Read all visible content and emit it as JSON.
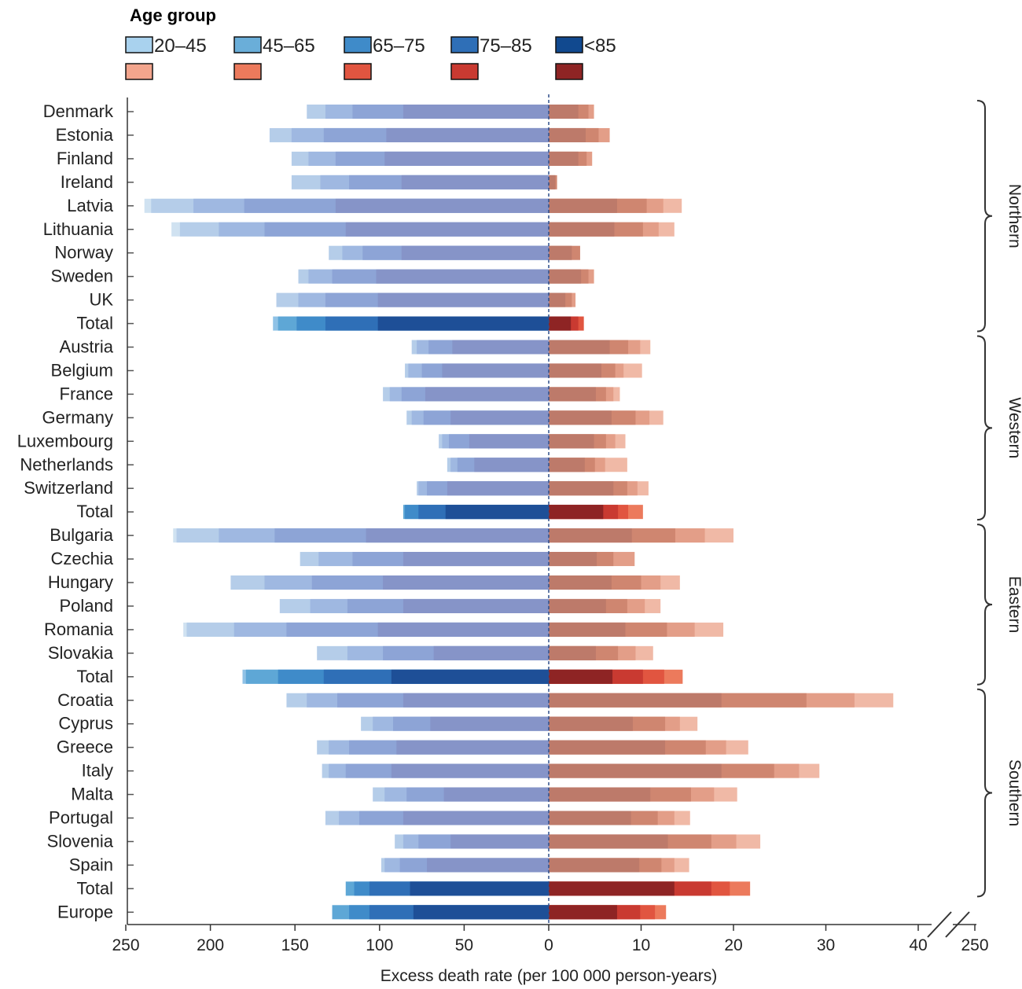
{
  "chart_data": {
    "type": "bar",
    "orientation": "horizontal",
    "legend": {
      "title": "Age group",
      "entries": [
        "20–45",
        "45–65",
        "65–75",
        "75–85",
        "<85"
      ],
      "placement": "top-left"
    },
    "colors": {
      "blue_muted": [
        "#d0e2f1",
        "#b5cde9",
        "#9fb8e1",
        "#8da4d6",
        "#8694c8"
      ],
      "blue_total": [
        "#8fc2e6",
        "#5ea7d6",
        "#3f8bc9",
        "#2f6fb7",
        "#1e4f97"
      ],
      "red_muted": [
        "#f6d4c9",
        "#f0b9a6",
        "#e39e88",
        "#cf8670",
        "#bd7a6a"
      ],
      "red_total": [
        "#f3a58d",
        "#ec7a5c",
        "#e15540",
        "#c93a31",
        "#8e2424"
      ],
      "legend_blue": [
        "#a9d2ee",
        "#6aaed9",
        "#3f8bc9",
        "#2f6fb7",
        "#11498f"
      ],
      "legend_red": [
        "#f3a58d",
        "#ec7a5c",
        "#e15540",
        "#c93a31",
        "#8e2424"
      ]
    },
    "xlabel": "Excess death rate (per 100 000 person-years)",
    "left_ticks": [
      250,
      200,
      150,
      100,
      50,
      0
    ],
    "right_ticks": [
      10,
      20,
      30,
      40,
      250
    ],
    "left_range": [
      0,
      250
    ],
    "right_range": [
      0,
      40
    ],
    "axis_break_right": true,
    "regions": [
      {
        "name": "Northern",
        "from": "Denmark",
        "to": "Total"
      },
      {
        "name": "Western",
        "from": "Austria",
        "to": "Total"
      },
      {
        "name": "Eastern",
        "from": "Bulgaria",
        "to": "Total"
      },
      {
        "name": "Southern",
        "from": "Croatia",
        "to": "Total"
      }
    ],
    "rows": [
      {
        "label": "Denmark",
        "total": false,
        "left": [
          86,
          116,
          132,
          143
        ],
        "right": [
          3.2,
          4.3,
          4.9
        ]
      },
      {
        "label": "Estonia",
        "total": false,
        "left": [
          96,
          133,
          152,
          165
        ],
        "right": [
          4.0,
          5.4,
          6.6
        ]
      },
      {
        "label": "Finland",
        "total": false,
        "left": [
          97,
          126,
          142,
          152
        ],
        "right": [
          3.2,
          4.1,
          4.7
        ]
      },
      {
        "label": "Ireland",
        "total": false,
        "left": [
          87,
          118,
          135,
          152
        ],
        "right": [
          0.7,
          0.9
        ]
      },
      {
        "label": "Latvia",
        "total": false,
        "left": [
          126,
          180,
          210,
          235,
          239
        ],
        "right": [
          7.4,
          10.6,
          12.4,
          14.4
        ]
      },
      {
        "label": "Lithuania",
        "total": false,
        "left": [
          120,
          168,
          195,
          218,
          223
        ],
        "right": [
          7.1,
          10.2,
          11.9,
          13.6
        ]
      },
      {
        "label": "Norway",
        "total": false,
        "left": [
          87,
          110,
          122,
          130
        ],
        "right": [
          2.5,
          3.4
        ]
      },
      {
        "label": "Sweden",
        "total": false,
        "left": [
          102,
          128,
          142,
          148
        ],
        "right": [
          3.5,
          4.3,
          4.9
        ]
      },
      {
        "label": "UK",
        "total": false,
        "left": [
          101,
          132,
          148,
          161
        ],
        "right": [
          1.8,
          2.5,
          2.9
        ]
      },
      {
        "label": "Total",
        "total": true,
        "left": [
          101,
          132,
          149,
          160,
          163
        ],
        "right": [
          2.4,
          3.2,
          3.8
        ]
      },
      {
        "label": "Austria",
        "total": false,
        "left": [
          57,
          71,
          78,
          81
        ],
        "right": [
          6.6,
          8.6,
          9.9,
          11.0
        ]
      },
      {
        "label": "Belgium",
        "total": false,
        "left": [
          63,
          75,
          83,
          85
        ],
        "right": [
          5.7,
          7.2,
          8.1,
          10.1
        ]
      },
      {
        "label": "France",
        "total": false,
        "left": [
          73,
          87,
          94,
          98
        ],
        "right": [
          5.1,
          6.2,
          7.0,
          7.7
        ]
      },
      {
        "label": "Germany",
        "total": false,
        "left": [
          58,
          74,
          81,
          84
        ],
        "right": [
          6.8,
          9.4,
          10.9,
          12.4
        ]
      },
      {
        "label": "Luxembourg",
        "total": false,
        "left": [
          47,
          59,
          63,
          65
        ],
        "right": [
          4.9,
          6.2,
          7.2,
          8.3
        ]
      },
      {
        "label": "Netherlands",
        "total": false,
        "left": [
          44,
          54,
          58,
          60
        ],
        "right": [
          3.9,
          5.0,
          6.1,
          8.5
        ]
      },
      {
        "label": "Switzerland",
        "total": false,
        "left": [
          60,
          72,
          77,
          78
        ],
        "right": [
          7.0,
          8.5,
          9.6,
          10.8
        ]
      },
      {
        "label": "Total",
        "total": true,
        "left": [
          61,
          77,
          85,
          86
        ],
        "right": [
          5.9,
          7.5,
          8.6,
          10.2
        ]
      },
      {
        "label": "Bulgaria",
        "total": false,
        "left": [
          108,
          162,
          195,
          220,
          222
        ],
        "right": [
          9.0,
          13.7,
          16.9,
          20.0
        ]
      },
      {
        "label": "Czechia",
        "total": false,
        "left": [
          86,
          116,
          136,
          147
        ],
        "right": [
          5.2,
          7.0,
          9.3
        ]
      },
      {
        "label": "Hungary",
        "total": false,
        "left": [
          98,
          140,
          168,
          188
        ],
        "right": [
          6.8,
          10.0,
          12.1,
          14.2
        ]
      },
      {
        "label": "Poland",
        "total": false,
        "left": [
          86,
          119,
          141,
          159
        ],
        "right": [
          6.2,
          8.5,
          10.4,
          12.1
        ]
      },
      {
        "label": "Romania",
        "total": false,
        "left": [
          101,
          155,
          186,
          214,
          216
        ],
        "right": [
          8.3,
          12.8,
          15.8,
          18.9
        ]
      },
      {
        "label": "Slovakia",
        "total": false,
        "left": [
          68,
          98,
          119,
          137
        ],
        "right": [
          5.1,
          7.5,
          9.4,
          11.3
        ]
      },
      {
        "label": "Total",
        "total": true,
        "left": [
          93,
          133,
          160,
          179,
          181
        ],
        "right": [
          6.9,
          10.2,
          12.5,
          14.5
        ]
      },
      {
        "label": "Croatia",
        "total": false,
        "left": [
          86,
          125,
          143,
          155
        ],
        "right": [
          18.7,
          27.9,
          33.1,
          37.3
        ]
      },
      {
        "label": "Cyprus",
        "total": false,
        "left": [
          70,
          92,
          104,
          111
        ],
        "right": [
          9.1,
          12.6,
          14.2,
          16.1
        ]
      },
      {
        "label": "Greece",
        "total": false,
        "left": [
          90,
          118,
          130,
          137
        ],
        "right": [
          12.6,
          17.0,
          19.2,
          21.6
        ]
      },
      {
        "label": "Italy",
        "total": false,
        "left": [
          93,
          120,
          130,
          134
        ],
        "right": [
          18.7,
          24.4,
          27.1,
          29.3
        ]
      },
      {
        "label": "Malta",
        "total": false,
        "left": [
          62,
          84,
          97,
          104
        ],
        "right": [
          11.0,
          15.4,
          17.9,
          20.4
        ]
      },
      {
        "label": "Portugal",
        "total": false,
        "left": [
          86,
          112,
          124,
          132
        ],
        "right": [
          8.9,
          11.8,
          13.6,
          15.3
        ]
      },
      {
        "label": "Slovenia",
        "total": false,
        "left": [
          58,
          77,
          86,
          91
        ],
        "right": [
          12.9,
          17.6,
          20.3,
          22.9
        ]
      },
      {
        "label": "Spain",
        "total": false,
        "left": [
          72,
          88,
          97,
          99
        ],
        "right": [
          9.8,
          12.2,
          13.6,
          15.2
        ]
      },
      {
        "label": "Total",
        "total": true,
        "left": [
          82,
          106,
          115,
          120
        ],
        "right": [
          13.6,
          17.6,
          19.6,
          21.8
        ]
      },
      {
        "label": "Europe",
        "total": true,
        "left": [
          80,
          106,
          118,
          128
        ],
        "right": [
          7.4,
          9.9,
          11.5,
          12.7
        ]
      }
    ]
  }
}
